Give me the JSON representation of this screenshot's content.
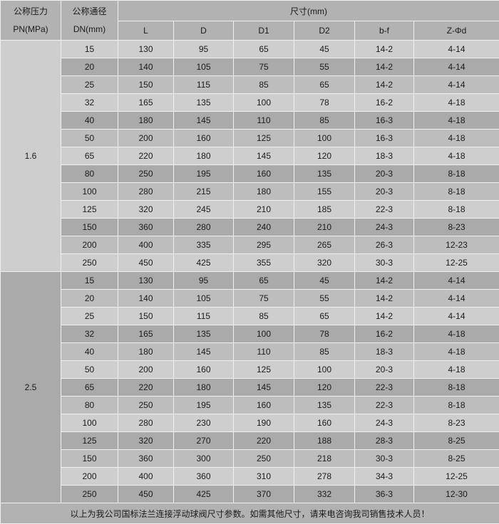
{
  "header": {
    "pressure_col": {
      "line1": "公称压力",
      "line2": "PN(MPa)"
    },
    "diameter_col": {
      "line1": "公称通径",
      "line2": "DN(mm)"
    },
    "dimensions_label": "尺寸(mm)",
    "dim_columns": [
      "L",
      "D",
      "D1",
      "D2",
      "b-f",
      "Z-Φd"
    ]
  },
  "sections": [
    {
      "pn": "1.6",
      "rows": [
        [
          "15",
          "130",
          "95",
          "65",
          "45",
          "14-2",
          "4-14"
        ],
        [
          "20",
          "140",
          "105",
          "75",
          "55",
          "14-2",
          "4-14"
        ],
        [
          "25",
          "150",
          "115",
          "85",
          "65",
          "14-2",
          "4-14"
        ],
        [
          "32",
          "165",
          "135",
          "100",
          "78",
          "16-2",
          "4-18"
        ],
        [
          "40",
          "180",
          "145",
          "110",
          "85",
          "16-3",
          "4-18"
        ],
        [
          "50",
          "200",
          "160",
          "125",
          "100",
          "16-3",
          "4-18"
        ],
        [
          "65",
          "220",
          "180",
          "145",
          "120",
          "18-3",
          "4-18"
        ],
        [
          "80",
          "250",
          "195",
          "160",
          "135",
          "20-3",
          "8-18"
        ],
        [
          "100",
          "280",
          "215",
          "180",
          "155",
          "20-3",
          "8-18"
        ],
        [
          "125",
          "320",
          "245",
          "210",
          "185",
          "22-3",
          "8-18"
        ],
        [
          "150",
          "360",
          "280",
          "240",
          "210",
          "24-3",
          "8-23"
        ],
        [
          "200",
          "400",
          "335",
          "295",
          "265",
          "26-3",
          "12-23"
        ],
        [
          "250",
          "450",
          "425",
          "355",
          "320",
          "30-3",
          "12-25"
        ]
      ]
    },
    {
      "pn": "2.5",
      "rows": [
        [
          "15",
          "130",
          "95",
          "65",
          "45",
          "14-2",
          "4-14"
        ],
        [
          "20",
          "140",
          "105",
          "75",
          "55",
          "14-2",
          "4-14"
        ],
        [
          "25",
          "150",
          "115",
          "85",
          "65",
          "14-2",
          "4-14"
        ],
        [
          "32",
          "165",
          "135",
          "100",
          "78",
          "16-2",
          "4-18"
        ],
        [
          "40",
          "180",
          "145",
          "110",
          "85",
          "18-3",
          "4-18"
        ],
        [
          "50",
          "200",
          "160",
          "125",
          "100",
          "20-3",
          "4-18"
        ],
        [
          "65",
          "220",
          "180",
          "145",
          "120",
          "22-3",
          "8-18"
        ],
        [
          "80",
          "250",
          "195",
          "160",
          "135",
          "22-3",
          "8-18"
        ],
        [
          "100",
          "280",
          "230",
          "190",
          "160",
          "24-3",
          "8-23"
        ],
        [
          "125",
          "320",
          "270",
          "220",
          "188",
          "28-3",
          "8-25"
        ],
        [
          "150",
          "360",
          "300",
          "250",
          "218",
          "30-3",
          "8-25"
        ],
        [
          "200",
          "400",
          "360",
          "310",
          "278",
          "34-3",
          "12-25"
        ],
        [
          "250",
          "450",
          "425",
          "370",
          "332",
          "36-3",
          "12-30"
        ]
      ]
    }
  ],
  "footer": {
    "note": "以上为我公司国标法兰连接浮动球阀尺寸参数。如需其他尺寸，请来电咨询我司销售技术人员！"
  },
  "colors": {
    "header_bg": "#b2b2b2",
    "row_light": "#cecece",
    "row_mid": "#bdbdbd",
    "row_dark": "#aaaaaa",
    "border": "#f0f0f0",
    "text": "#1a1a1a"
  }
}
